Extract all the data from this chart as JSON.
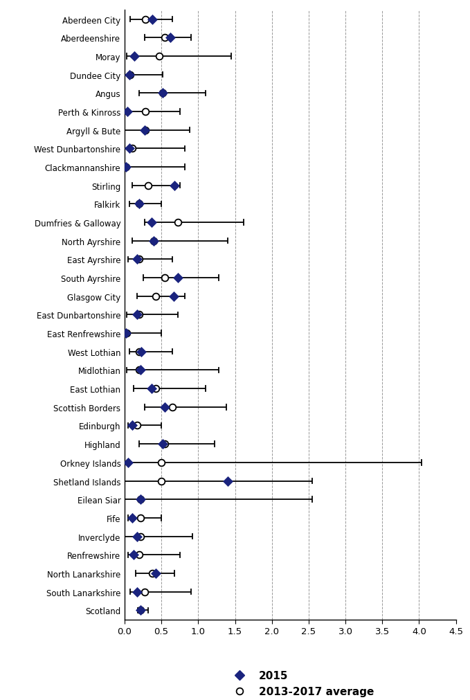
{
  "categories": [
    "Aberdeen City",
    "Aberdeenshire",
    "Moray",
    "Dundee City",
    "Angus",
    "Perth & Kinross",
    "Argyll & Bute",
    "West Dunbartonshire",
    "Clackmannanshire",
    "Stirling",
    "Falkirk",
    "Dumfries & Galloway",
    "North Ayrshire",
    "East Ayrshire",
    "South Ayrshire",
    "Glasgow City",
    "East Dunbartonshire",
    "East Renfrewshire",
    "West Lothian",
    "Midlothian",
    "East Lothian",
    "Scottish Borders",
    "Edinburgh",
    "Highland",
    "Orkney Islands",
    "Shetland Islands",
    "Eilean Siar",
    "Fife",
    "Inverclyde",
    "Renfrewshire",
    "North Lanarkshire",
    "South Lanarkshire",
    "Scotland"
  ],
  "val_2015": [
    0.38,
    0.62,
    0.13,
    0.07,
    0.52,
    0.04,
    0.27,
    0.07,
    0.02,
    0.68,
    0.2,
    0.37,
    0.4,
    0.17,
    0.72,
    0.67,
    0.17,
    0.02,
    0.23,
    0.22,
    0.37,
    0.55,
    0.1,
    0.52,
    0.05,
    1.4,
    0.22,
    0.1,
    0.17,
    0.12,
    0.42,
    0.17,
    0.22
  ],
  "val_avg": [
    0.28,
    0.55,
    0.47,
    0.08,
    0.52,
    0.28,
    0.28,
    0.1,
    0.02,
    0.32,
    0.2,
    0.72,
    0.4,
    0.2,
    0.55,
    0.42,
    0.2,
    0.03,
    0.2,
    0.2,
    0.42,
    0.65,
    0.17,
    0.55,
    0.5,
    0.5,
    0.22,
    0.22,
    0.22,
    0.2,
    0.38,
    0.27,
    0.22
  ],
  "ci_low": [
    0.08,
    0.27,
    0.03,
    0.0,
    0.2,
    0.0,
    0.0,
    0.0,
    0.0,
    0.1,
    0.07,
    0.27,
    0.1,
    0.05,
    0.25,
    0.17,
    0.03,
    0.0,
    0.07,
    0.03,
    0.12,
    0.27,
    0.05,
    0.2,
    0.0,
    0.0,
    0.0,
    0.05,
    0.0,
    0.05,
    0.15,
    0.08,
    0.18
  ],
  "ci_high": [
    0.65,
    0.9,
    1.45,
    0.52,
    1.1,
    0.75,
    0.88,
    0.82,
    0.82,
    0.75,
    0.5,
    1.62,
    1.4,
    0.65,
    1.28,
    0.82,
    0.72,
    0.5,
    0.65,
    1.28,
    1.1,
    1.38,
    0.5,
    1.22,
    4.03,
    2.55,
    2.55,
    0.5,
    0.92,
    0.75,
    0.68,
    0.9,
    0.32
  ],
  "xlim": [
    0.0,
    4.5
  ],
  "xticks": [
    0.0,
    0.5,
    1.0,
    1.5,
    2.0,
    2.5,
    3.0,
    3.5,
    4.0,
    4.5
  ],
  "color_2015": "#1a237e",
  "figwidth": 6.79,
  "figheight": 10.12,
  "dpi": 100
}
